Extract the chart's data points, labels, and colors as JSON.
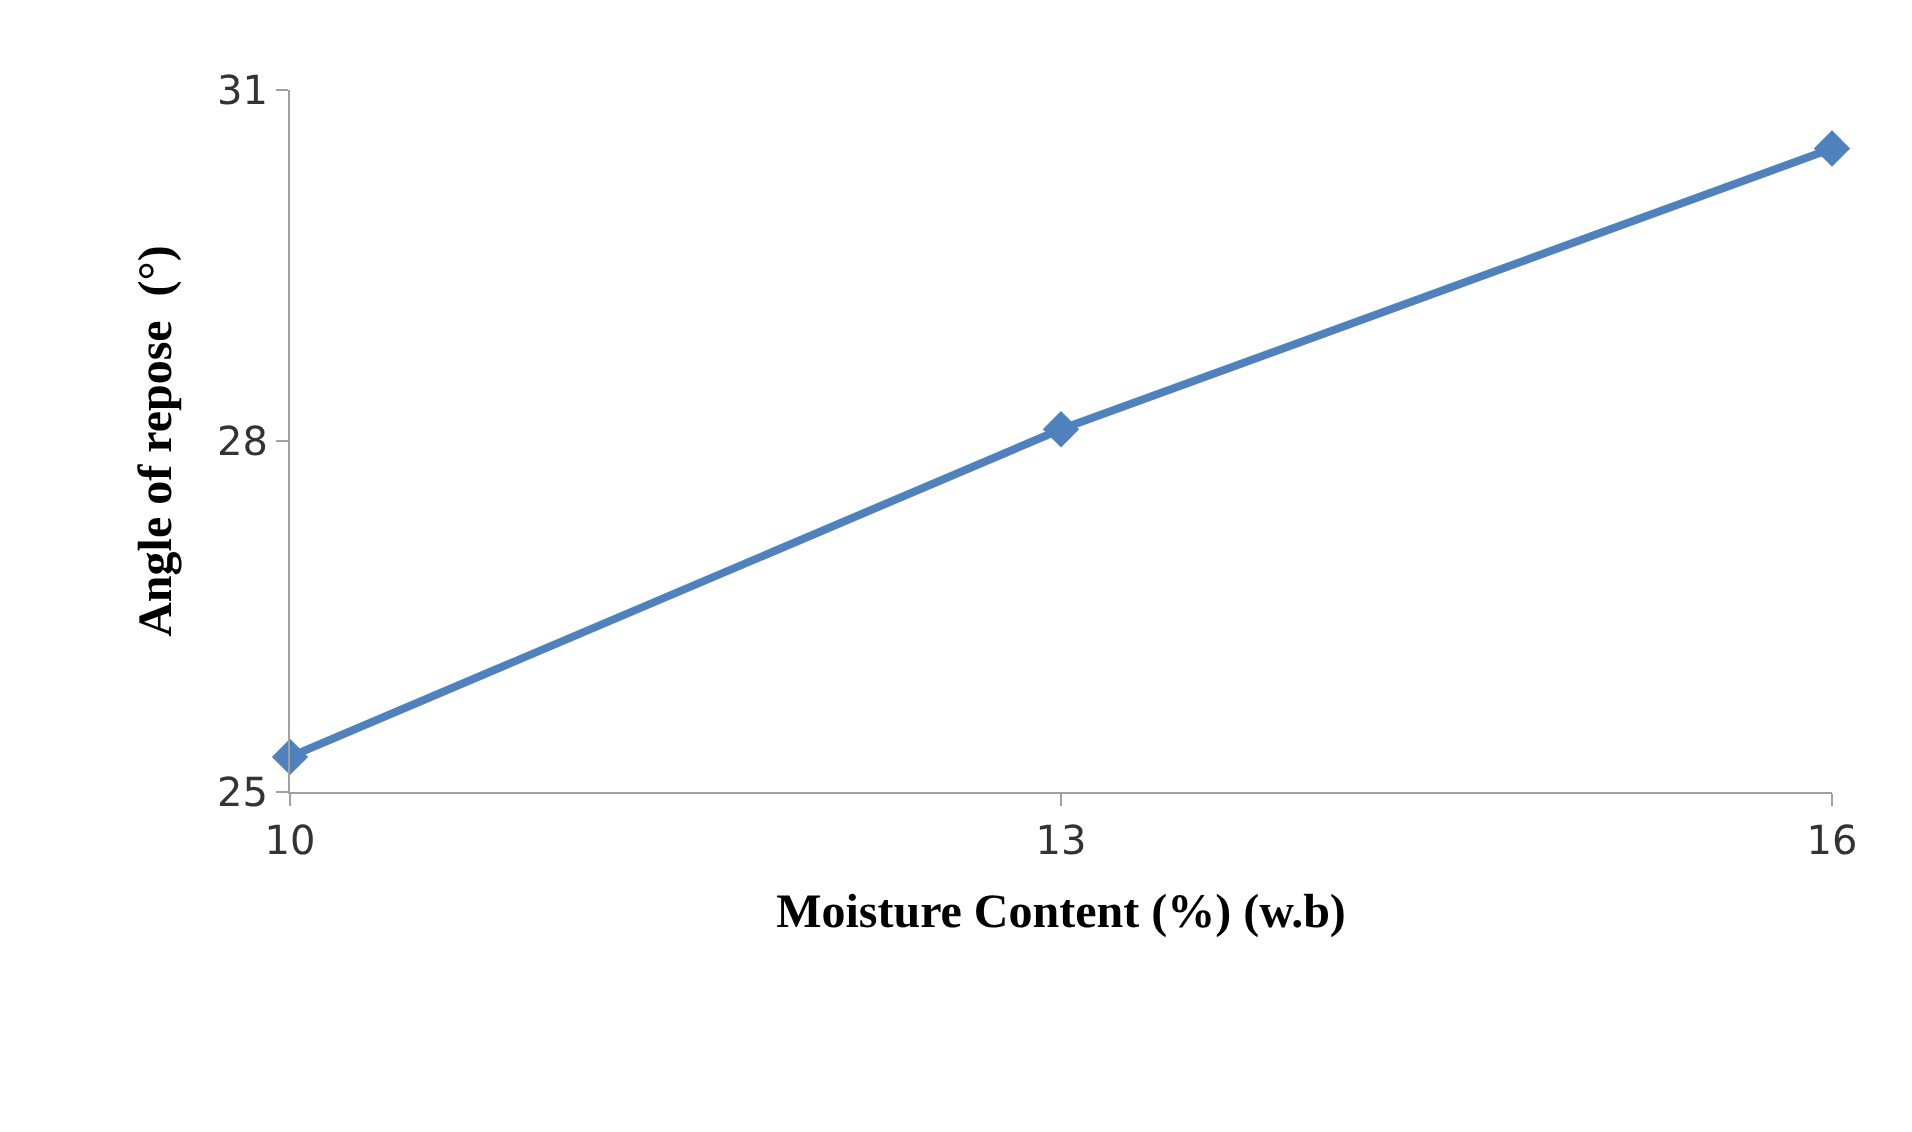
{
  "chart_data": {
    "type": "line",
    "xlabel": "Moisture Content (%) (w.b)",
    "ylabel": "Angle of repose  (°)",
    "x": [
      10,
      13,
      16
    ],
    "series": [
      {
        "color": "#4f81bd",
        "values": [
          25.3,
          28.1,
          30.5
        ]
      }
    ],
    "xlim": [
      10,
      16
    ],
    "xticks": [
      10,
      13,
      16
    ],
    "ylim": [
      25,
      31
    ],
    "yticks": [
      25,
      28,
      31
    ],
    "grid": false,
    "legend": false,
    "marker": "diamond",
    "line_style": "solid"
  }
}
